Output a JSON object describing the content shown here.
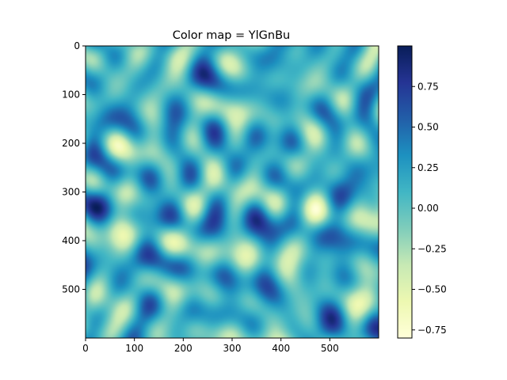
{
  "chart_data": {
    "type": "heatmap",
    "title": "Color map = YlGnBu",
    "colormap": "YlGnBu",
    "grid": false,
    "image_size": [
      600,
      600
    ],
    "x_range": [
      0,
      600
    ],
    "y_range": [
      600,
      0
    ],
    "x_ticks": [
      0,
      100,
      200,
      300,
      400,
      500
    ],
    "y_ticks": [
      0,
      100,
      200,
      300,
      400,
      500
    ],
    "colorbar": {
      "range": [
        -0.8,
        1.0
      ],
      "ticks": [
        0.75,
        0.5,
        0.25,
        0.0,
        -0.25,
        -0.5,
        -0.75
      ],
      "tick_labels": [
        "0.75",
        "0.50",
        "0.25",
        "0.00",
        "−0.25",
        "−0.50",
        "−0.75"
      ]
    },
    "colormap_stops": [
      "#ffffd9",
      "#edf8b1",
      "#c7e9b4",
      "#7fcdbb",
      "#41b6c4",
      "#1d91c0",
      "#225ea8",
      "#253494",
      "#081d58"
    ]
  }
}
